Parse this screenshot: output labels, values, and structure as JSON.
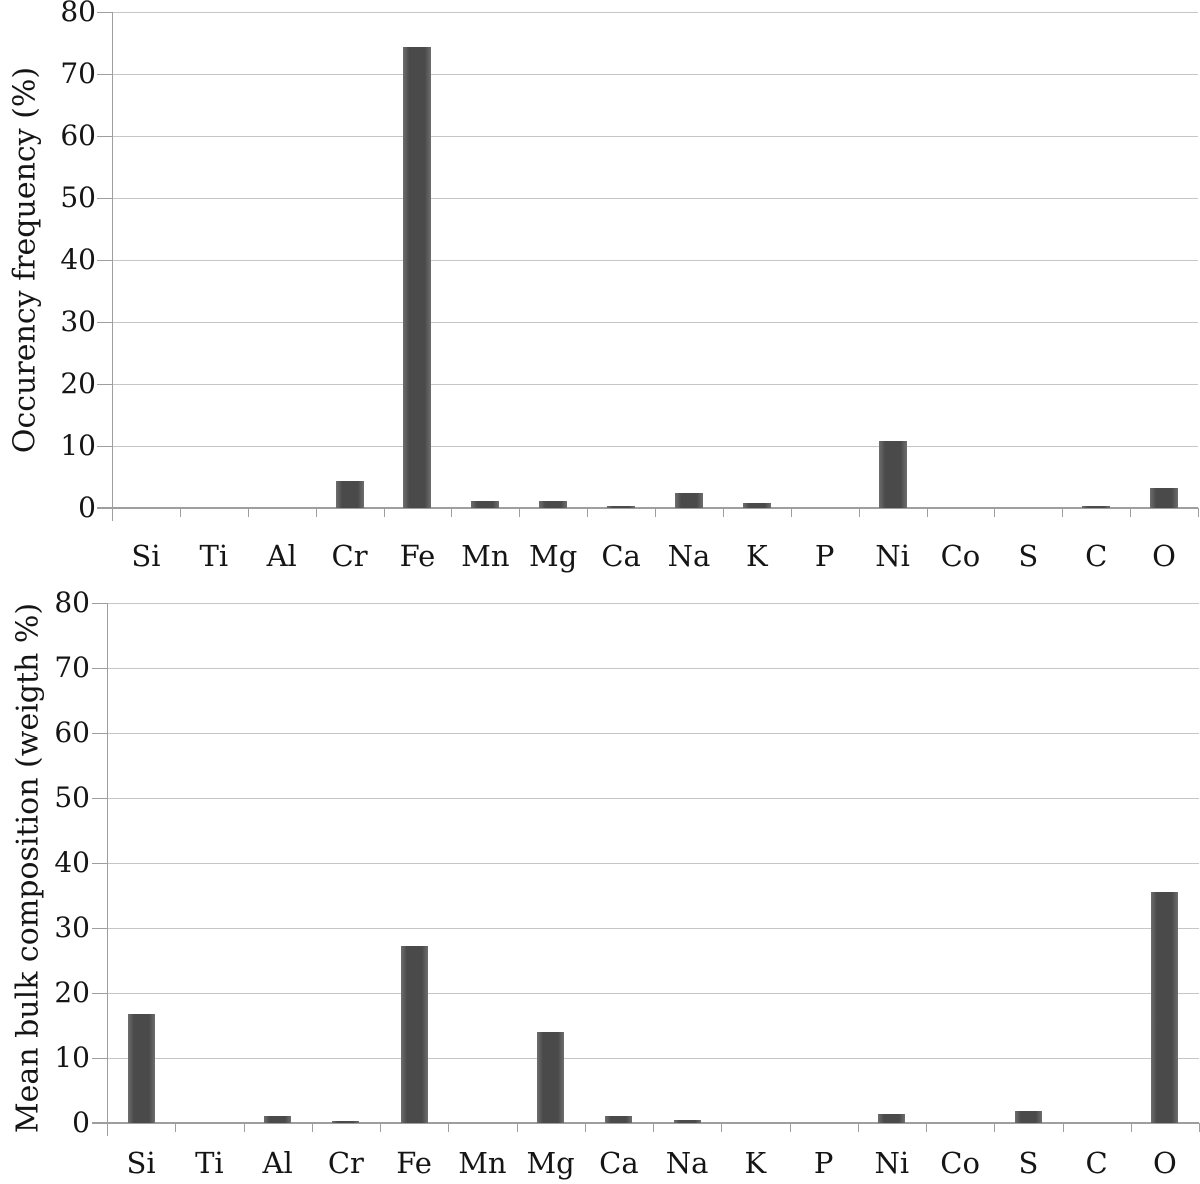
{
  "page_title": "Elemental occurrence and composition bar charts",
  "chart_data": [
    {
      "type": "bar",
      "title": "",
      "ylabel": "Occurency frequency (%)",
      "xlabel": "",
      "categories": [
        "Si",
        "Ti",
        "Al",
        "Cr",
        "Fe",
        "Mn",
        "Mg",
        "Ca",
        "Na",
        "K",
        "P",
        "Ni",
        "Co",
        "S",
        "C",
        "O"
      ],
      "values": [
        0,
        0,
        0,
        4.4,
        74.4,
        1.2,
        1.2,
        0.3,
        2.4,
        0.8,
        0,
        10.8,
        0,
        0,
        0.3,
        3.3
      ],
      "ylim": [
        0,
        80
      ],
      "yticks": [
        0,
        10,
        20,
        30,
        40,
        50,
        60,
        70,
        80
      ],
      "grid": true,
      "legend": "none",
      "bar_color": "#4d4d4d",
      "gridline_color": "#c6c6c6",
      "axis_color": "#9e9e9e"
    },
    {
      "type": "bar",
      "title": "",
      "ylabel": "Mean bulk composition (weigth %)",
      "xlabel": "",
      "categories": [
        "Si",
        "Ti",
        "Al",
        "Cr",
        "Fe",
        "Mn",
        "Mg",
        "Ca",
        "Na",
        "K",
        "P",
        "Ni",
        "Co",
        "S",
        "C",
        "O"
      ],
      "values": [
        16.8,
        0,
        1.1,
        0.3,
        27.3,
        0,
        14,
        1.1,
        0.5,
        0,
        0,
        1.4,
        0,
        1.8,
        0,
        35.5
      ],
      "ylim": [
        0,
        80
      ],
      "yticks": [
        0,
        10,
        20,
        30,
        40,
        50,
        60,
        70,
        80
      ],
      "grid": true,
      "legend": "none",
      "bar_color": "#4d4d4d",
      "gridline_color": "#c6c6c6",
      "axis_color": "#9e9e9e"
    }
  ]
}
